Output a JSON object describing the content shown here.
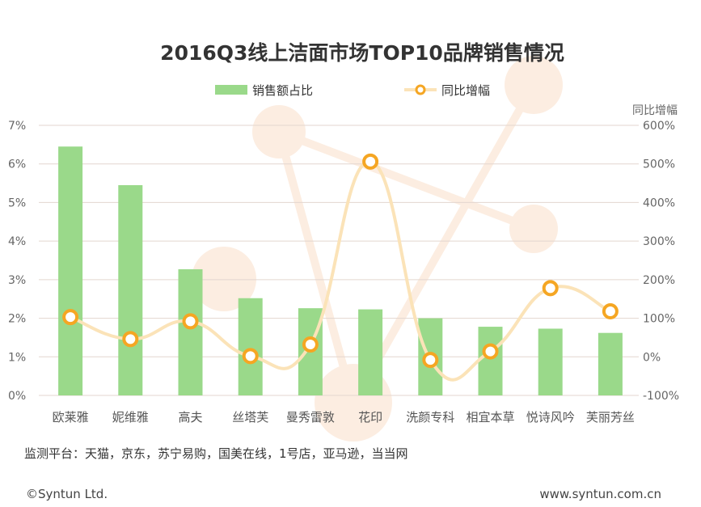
{
  "chart_data": {
    "type": "bar+line",
    "title": "2016Q3线上洁面市场TOP10品牌销售情况",
    "categories": [
      "欧莱雅",
      "妮维雅",
      "高夫",
      "丝塔芙",
      "曼秀雷敦",
      "花印",
      "洗颜专科",
      "相宜本草",
      "悦诗风吟",
      "芙丽芳丝"
    ],
    "series": [
      {
        "name": "销售额占比",
        "type": "bar",
        "axis": "left",
        "values": [
          6.45,
          5.45,
          3.27,
          2.52,
          2.26,
          2.23,
          2.0,
          1.78,
          1.73,
          1.62
        ],
        "color": "#9ad98a"
      },
      {
        "name": "同比增幅",
        "type": "line",
        "axis": "right",
        "values": [
          103,
          46,
          92,
          2,
          32,
          506,
          -8,
          14,
          178,
          118
        ],
        "color": "#f5a623"
      }
    ],
    "y_left": {
      "min": 0,
      "max": 7,
      "step": 1,
      "tick_labels": [
        "0%",
        "1%",
        "2%",
        "3%",
        "4%",
        "5%",
        "6%",
        "7%"
      ]
    },
    "y_right": {
      "min": -100,
      "max": 600,
      "step": 100,
      "label": "同比增幅",
      "tick_labels": [
        "-100%",
        "0%",
        "100%",
        "200%",
        "300%",
        "400%",
        "500%",
        "600%"
      ]
    },
    "legend": {
      "position": "top-center",
      "bar_label": "销售额占比",
      "line_label": "同比增幅"
    },
    "grid": true
  },
  "footer": {
    "source": "监测平台：天猫，京东，苏宁易购，国美在线，1号店，亚马逊，当当网",
    "copyright": "©Syntun Ltd.",
    "website": "www.syntun.com.cn"
  },
  "colors": {
    "grid": "#e3d6cf",
    "line": "#fbe3b8",
    "marker_fill": "#ffffff",
    "marker_stroke": "#f5a623",
    "watermark": "#fbe7d7"
  }
}
